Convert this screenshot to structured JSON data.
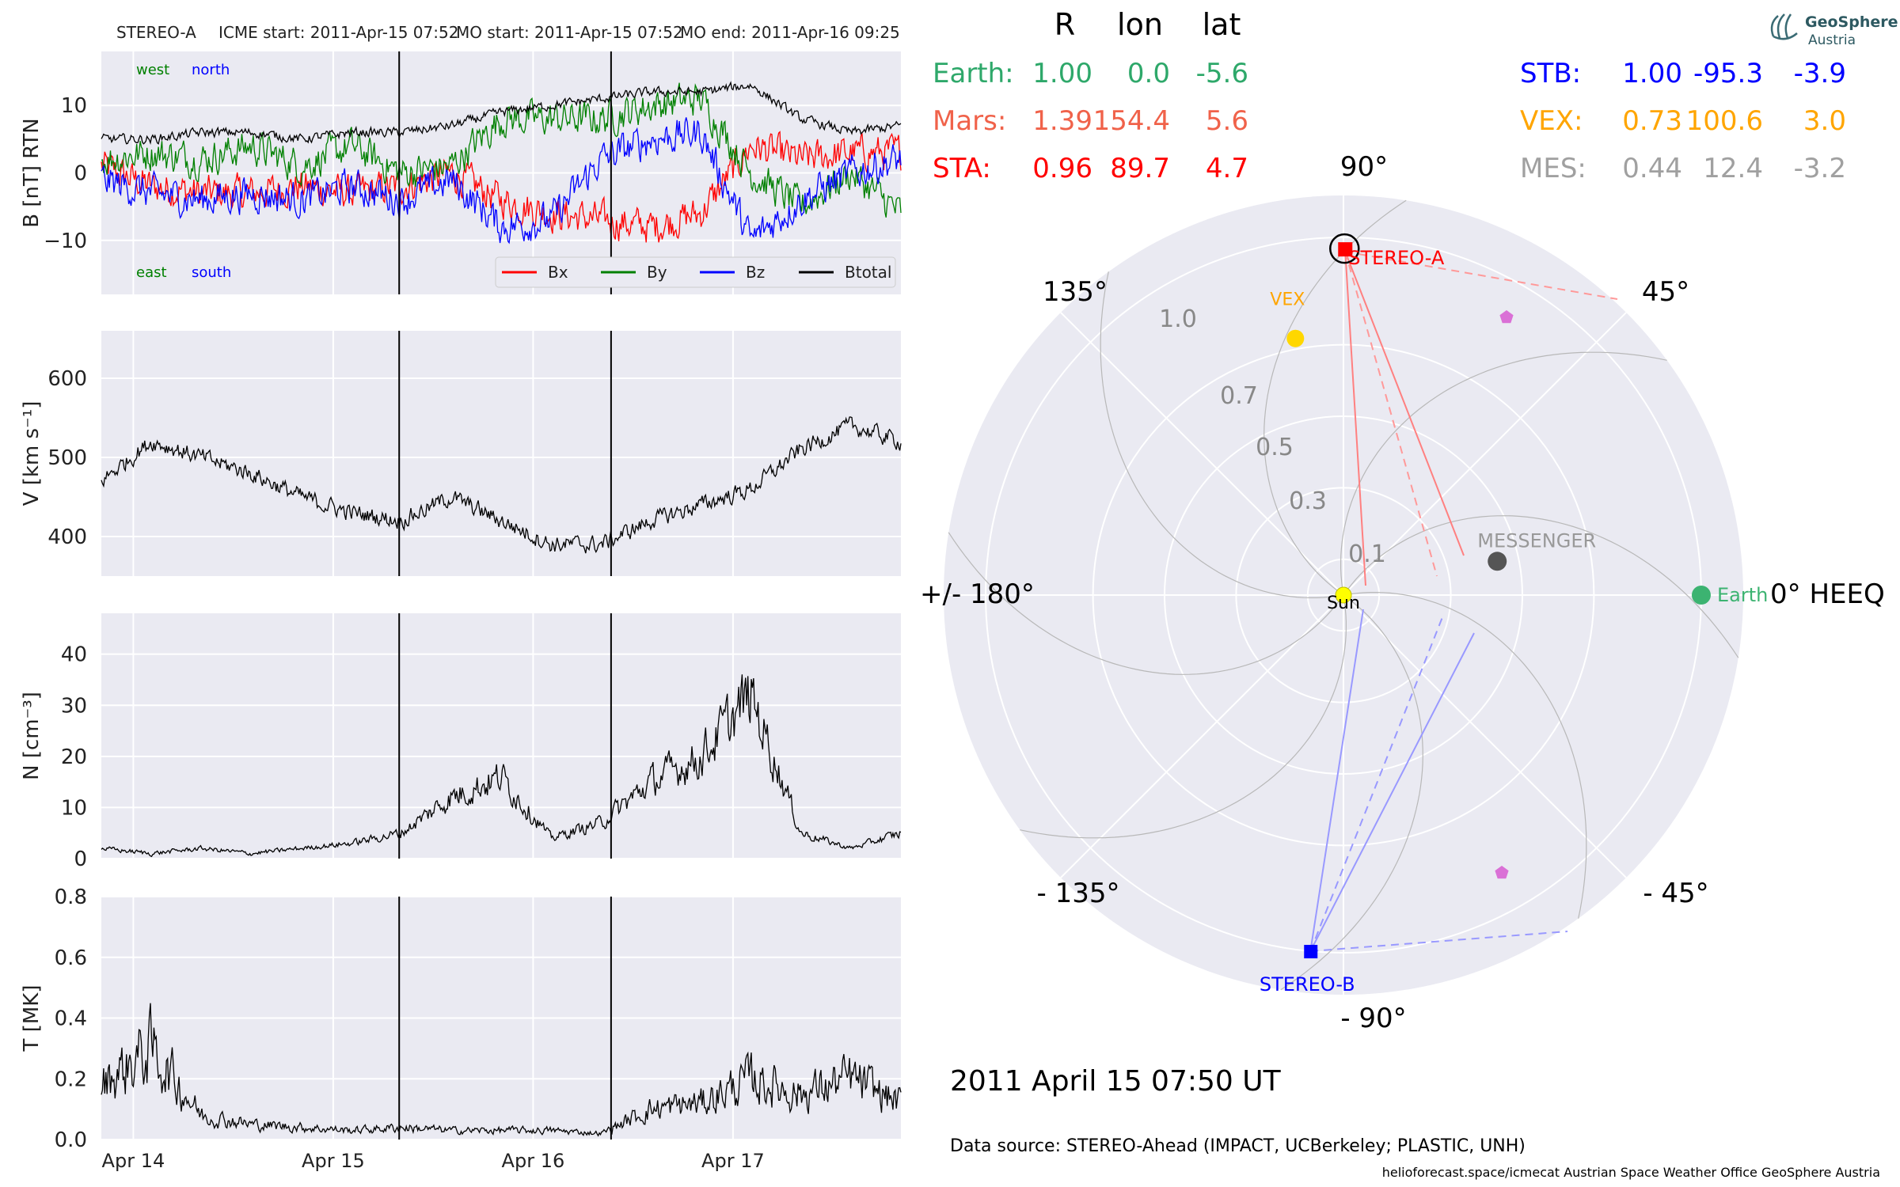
{
  "header": {
    "spacecraft": "STEREO-A",
    "icme_start": "ICME start: 2011-Apr-15 07:52",
    "mo_start": "MO start: 2011-Apr-15 07:52",
    "mo_end": "MO end: 2011-Apr-16 09:25"
  },
  "logo": {
    "line1": "GeoSphere",
    "line2": "Austria"
  },
  "polar": {
    "column_headers": [
      "R",
      "lon",
      "lat"
    ],
    "left_table": [
      {
        "name": "Earth:",
        "R": "1.00",
        "lon": "0.0",
        "lat": "-5.6",
        "color": "#2ea86a"
      },
      {
        "name": "Mars:",
        "R": "1.39",
        "lon": "154.4",
        "lat": "5.6",
        "color": "#f0624a"
      },
      {
        "name": "STA:",
        "R": "0.96",
        "lon": "89.7",
        "lat": "4.7",
        "color": "#ff0000"
      }
    ],
    "right_table": [
      {
        "name": "STB:",
        "R": "1.00",
        "lon": "-95.3",
        "lat": "-3.9",
        "color": "#0000ff"
      },
      {
        "name": "VEX:",
        "R": "0.73",
        "lon": "100.6",
        "lat": "3.0",
        "color": "#ffa500"
      },
      {
        "name": "MES:",
        "R": "0.44",
        "lon": "12.4",
        "lat": "-3.2",
        "color": "#a0a0a0"
      }
    ],
    "angle_labels": {
      "a90": "90°",
      "a45": "45°",
      "a135": "135°",
      "a180": "+/- 180°",
      "a0": "0° HEEQ",
      "am45": "- 45°",
      "am90": "- 90°",
      "am135": "- 135°"
    },
    "radial_labels": [
      "0.1",
      "0.3",
      "0.5",
      "0.7",
      "1.0"
    ],
    "radial_values": [
      0.1,
      0.3,
      0.5,
      0.7,
      1.0
    ],
    "objects": {
      "sun": {
        "label": "Sun",
        "r": 0.0,
        "lon": 0.0,
        "color": "#ffff00"
      },
      "earth": {
        "label": "Earth",
        "r": 1.0,
        "lon": 0.0,
        "color": "#3cb371"
      },
      "stereo_a": {
        "label": "STEREO-A",
        "r": 0.96,
        "lon": 89.7,
        "color": "#ff0000"
      },
      "stereo_b": {
        "label": "STEREO-B",
        "r": 1.0,
        "lon": -95.3,
        "color": "#0000ff"
      },
      "vex": {
        "label": "VEX",
        "r": 0.73,
        "lon": 100.6,
        "color": "#ffd700",
        "label_color": "#ffa500"
      },
      "messenger": {
        "label": "MESSENGER",
        "r": 0.44,
        "lon": 12.4,
        "color": "#555555",
        "label_color": "#999999"
      }
    },
    "timestamp": "2011 April 15  07:50 UT"
  },
  "footer": {
    "data_source": "Data source: STEREO-Ahead (IMPACT, UCBerkeley; PLASTIC, UNH)",
    "credits": "helioforecast.space/icmecat   Austrian Space Weather Office   GeoSphere Austria"
  },
  "chart_data": [
    {
      "type": "line",
      "ylabel": "B [nT] RTN",
      "ylim": [
        -18,
        18
      ],
      "yticks": [
        10,
        0,
        -10
      ],
      "ytick_labels": [
        "10",
        "0",
        "−10"
      ],
      "corner_labels": {
        "west": "west",
        "north": "north",
        "east": "east",
        "south": "south"
      },
      "legend": [
        "Bx",
        "By",
        "Bz",
        "Btotal"
      ],
      "legend_placement": "lower-right",
      "series": [
        {
          "name": "Bx",
          "color": "#ff0000",
          "x": [
            0,
            0.25,
            0.5,
            0.75,
            1.0,
            1.25,
            1.5,
            1.75,
            2.0,
            2.25,
            2.5,
            2.75,
            3.0,
            3.25,
            3.5,
            3.75,
            4.0
          ],
          "values": [
            1,
            -2,
            -3,
            -3,
            -2,
            -3,
            -2,
            0,
            -4,
            -6,
            -7,
            -8,
            -6,
            4,
            2,
            3,
            3
          ]
        },
        {
          "name": "By",
          "color": "#008000",
          "x": [
            0,
            0.25,
            0.5,
            0.75,
            1.0,
            1.25,
            1.5,
            1.75,
            2.0,
            2.25,
            2.5,
            2.75,
            3.0,
            3.25,
            3.5,
            3.75,
            4.0
          ],
          "values": [
            2,
            3,
            2,
            4,
            1,
            4,
            0,
            1,
            8,
            8,
            8,
            10,
            11,
            0,
            -5,
            0,
            -6
          ]
        },
        {
          "name": "Bz",
          "color": "#0000ff",
          "x": [
            0,
            0.25,
            0.5,
            0.75,
            1.0,
            1.25,
            1.5,
            1.75,
            2.0,
            2.25,
            2.5,
            2.75,
            3.0,
            3.25,
            3.5,
            3.75,
            4.0
          ],
          "values": [
            -1,
            -3,
            -4,
            -3,
            -4,
            -2,
            -4,
            -1,
            -8,
            -7,
            2,
            5,
            6,
            -10,
            -4,
            0,
            2
          ]
        },
        {
          "name": "Btotal",
          "color": "#000000",
          "x": [
            0,
            0.25,
            0.5,
            0.75,
            1.0,
            1.25,
            1.5,
            1.75,
            2.0,
            2.25,
            2.5,
            2.75,
            3.0,
            3.25,
            3.5,
            3.75,
            4.0
          ],
          "values": [
            5,
            5,
            6,
            6,
            5,
            6,
            6,
            7,
            9,
            10,
            11,
            12,
            12,
            13,
            8,
            6,
            7
          ]
        }
      ]
    },
    {
      "type": "line",
      "ylabel": "V [km s⁻¹]",
      "ylim": [
        350,
        660
      ],
      "yticks": [
        600,
        500,
        400
      ],
      "ytick_labels": [
        "600",
        "500",
        "400"
      ],
      "series": [
        {
          "name": "V",
          "color": "#000000",
          "x": [
            0,
            0.25,
            0.5,
            0.75,
            1.0,
            1.25,
            1.5,
            1.75,
            2.0,
            2.25,
            2.5,
            2.75,
            3.0,
            3.25,
            3.5,
            3.75,
            4.0
          ],
          "values": [
            470,
            520,
            500,
            480,
            450,
            430,
            420,
            450,
            420,
            390,
            390,
            420,
            440,
            460,
            510,
            540,
            520
          ]
        }
      ]
    },
    {
      "type": "line",
      "ylabel": "N [cm⁻³]",
      "ylim": [
        0,
        48
      ],
      "yticks": [
        40,
        30,
        20,
        10,
        0
      ],
      "ytick_labels": [
        "40",
        "30",
        "20",
        "10",
        "0"
      ],
      "series": [
        {
          "name": "N",
          "color": "#000000",
          "x": [
            0,
            0.25,
            0.5,
            0.75,
            1.0,
            1.25,
            1.5,
            1.75,
            2.0,
            2.25,
            2.5,
            2.75,
            3.0,
            3.25,
            3.5,
            3.75,
            4.0
          ],
          "values": [
            2,
            1,
            2,
            1,
            2,
            3,
            5,
            12,
            16,
            4,
            7,
            15,
            20,
            32,
            5,
            2,
            5
          ]
        }
      ]
    },
    {
      "type": "line",
      "ylabel": "T [MK]",
      "ylim": [
        0,
        0.8
      ],
      "yticks": [
        0.8,
        0.6,
        0.4,
        0.2,
        0.0
      ],
      "ytick_labels": [
        "0.8",
        "0.6",
        "0.4",
        "0.2",
        "0.0"
      ],
      "x_tick_labels": [
        "Apr 14",
        "Apr 15",
        "Apr 16",
        "Apr 17"
      ],
      "x_ticks": [
        0.16,
        1.16,
        2.16,
        3.16
      ],
      "xlim": [
        0,
        4.0
      ],
      "event_lines": [
        1.49,
        2.55
      ],
      "series": [
        {
          "name": "T",
          "color": "#000000",
          "x": [
            0,
            0.25,
            0.5,
            0.75,
            1.0,
            1.25,
            1.5,
            1.75,
            2.0,
            2.25,
            2.5,
            2.75,
            3.0,
            3.25,
            3.5,
            3.75,
            4.0
          ],
          "values": [
            0.18,
            0.3,
            0.08,
            0.05,
            0.04,
            0.03,
            0.04,
            0.03,
            0.03,
            0.03,
            0.02,
            0.1,
            0.12,
            0.2,
            0.15,
            0.2,
            0.12
          ]
        }
      ]
    }
  ]
}
